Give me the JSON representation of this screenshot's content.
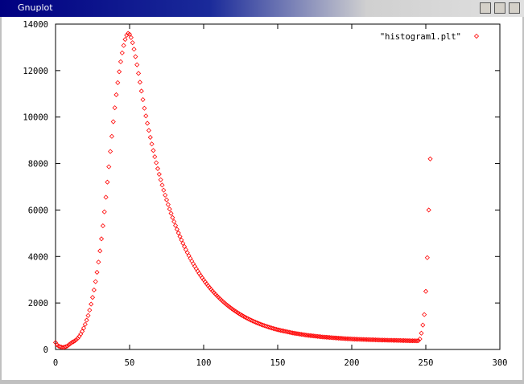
{
  "window": {
    "title": "Gnuplot"
  },
  "chart_data": {
    "type": "scatter",
    "xlim": [
      0,
      300
    ],
    "xticks": [
      0,
      50,
      100,
      150,
      200,
      250,
      300
    ],
    "ylim": [
      0,
      14000
    ],
    "yticks": [
      0,
      2000,
      4000,
      6000,
      8000,
      10000,
      12000,
      14000
    ],
    "grid": false,
    "legend": "top-right",
    "x": [
      0,
      1,
      2,
      3,
      4,
      5,
      6,
      7,
      8,
      9,
      10,
      11,
      12,
      13,
      14,
      15,
      16,
      17,
      18,
      19,
      20,
      21,
      22,
      23,
      24,
      25,
      26,
      27,
      28,
      29,
      30,
      31,
      32,
      33,
      34,
      35,
      36,
      37,
      38,
      39,
      40,
      41,
      42,
      43,
      44,
      45,
      46,
      47,
      48,
      49,
      50,
      51,
      52,
      53,
      54,
      55,
      56,
      57,
      58,
      59,
      60,
      61,
      62,
      63,
      64,
      65,
      66,
      67,
      68,
      69,
      70,
      71,
      72,
      73,
      74,
      75,
      76,
      77,
      78,
      79,
      80,
      81,
      82,
      83,
      84,
      85,
      86,
      87,
      88,
      89,
      90,
      91,
      92,
      93,
      94,
      95,
      96,
      97,
      98,
      99,
      100,
      101,
      102,
      103,
      104,
      105,
      106,
      107,
      108,
      109,
      110,
      111,
      112,
      113,
      114,
      115,
      116,
      117,
      118,
      119,
      120,
      121,
      122,
      123,
      124,
      125,
      126,
      127,
      128,
      129,
      130,
      131,
      132,
      133,
      134,
      135,
      136,
      137,
      138,
      139,
      140,
      141,
      142,
      143,
      144,
      145,
      146,
      147,
      148,
      149,
      150,
      151,
      152,
      153,
      154,
      155,
      156,
      157,
      158,
      159,
      160,
      161,
      162,
      163,
      164,
      165,
      166,
      167,
      168,
      169,
      170,
      171,
      172,
      173,
      174,
      175,
      176,
      177,
      178,
      179,
      180,
      181,
      182,
      183,
      184,
      185,
      186,
      187,
      188,
      189,
      190,
      191,
      192,
      193,
      194,
      195,
      196,
      197,
      198,
      199,
      200,
      201,
      202,
      203,
      204,
      205,
      206,
      207,
      208,
      209,
      210,
      211,
      212,
      213,
      214,
      215,
      216,
      217,
      218,
      219,
      220,
      221,
      222,
      223,
      224,
      225,
      226,
      227,
      228,
      229,
      230,
      231,
      232,
      233,
      234,
      235,
      236,
      237,
      238,
      239,
      240,
      241,
      242,
      243,
      244,
      245,
      246,
      247,
      248,
      249,
      250,
      251,
      252,
      253
    ],
    "series": [
      {
        "name": "\"histogram1.plt\"",
        "color": "#ff0000",
        "values": [
          300,
          200,
          150,
          120,
          100,
          90,
          100,
          120,
          150,
          200,
          250,
          300,
          330,
          370,
          420,
          480,
          560,
          660,
          780,
          920,
          1080,
          1260,
          1460,
          1690,
          1950,
          2240,
          2560,
          2920,
          3320,
          3760,
          4240,
          4760,
          5320,
          5920,
          6550,
          7200,
          7860,
          8520,
          9170,
          9800,
          10400,
          10960,
          11480,
          11950,
          12380,
          12760,
          13080,
          13340,
          13520,
          13600,
          13560,
          13420,
          13200,
          12920,
          12600,
          12250,
          11880,
          11500,
          11120,
          10750,
          10380,
          10050,
          9733,
          9426,
          9128,
          8841,
          8562,
          8293,
          8033,
          7781,
          7538,
          7302,
          7074,
          6854,
          6641,
          6435,
          6235,
          6042,
          5856,
          5675,
          5501,
          5332,
          5169,
          5011,
          4858,
          4710,
          4567,
          4429,
          4295,
          4166,
          4041,
          3920,
          3803,
          3690,
          3580,
          3474,
          3372,
          3273,
          3177,
          3084,
          2995,
          2908,
          2824,
          2743,
          2665,
          2589,
          2515,
          2444,
          2376,
          2309,
          2245,
          2183,
          2123,
          2065,
          2009,
          1954,
          1902,
          1851,
          1802,
          1754,
          1708,
          1664,
          1621,
          1579,
          1539,
          1500,
          1462,
          1426,
          1390,
          1356,
          1323,
          1291,
          1261,
          1231,
          1202,
          1174,
          1147,
          1121,
          1096,
          1071,
          1048,
          1025,
          1003,
          981,
          961,
          941,
          921,
          903,
          885,
          867,
          850,
          835,
          820,
          806,
          792,
          778,
          765,
          752,
          740,
          725,
          710,
          700,
          690,
          680,
          670,
          660,
          650,
          640,
          630,
          620,
          610,
          603,
          596,
          589,
          582,
          575,
          568,
          561,
          554,
          547,
          540,
          535,
          530,
          525,
          520,
          515,
          510,
          505,
          500,
          495,
          490,
          486,
          482,
          478,
          474,
          470,
          466,
          462,
          458,
          454,
          450,
          447,
          445,
          442,
          440,
          437,
          435,
          432,
          430,
          427,
          425,
          423,
          421,
          419,
          417,
          415,
          413,
          411,
          409,
          407,
          405,
          403,
          402,
          400,
          399,
          397,
          396,
          394,
          393,
          391,
          390,
          388,
          387,
          385,
          384,
          382,
          381,
          379,
          378,
          376,
          375,
          374,
          373,
          372,
          371,
          380,
          450,
          700,
          1050,
          1500,
          2500,
          3950,
          6000,
          8200
        ]
      }
    ]
  }
}
